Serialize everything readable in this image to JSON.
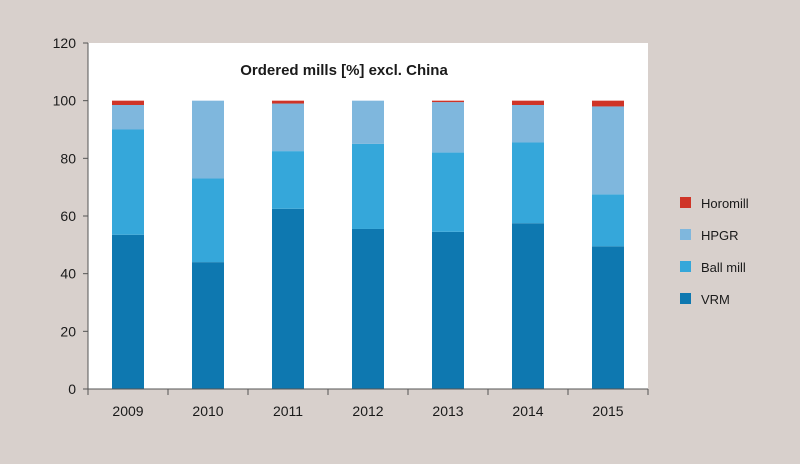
{
  "chart_data": {
    "type": "bar",
    "stacked": true,
    "title": "Ordered mills [%] excl. China",
    "xlabel": "",
    "ylabel": "",
    "ylim": [
      0,
      120
    ],
    "yticks": [
      0,
      20,
      40,
      60,
      80,
      100,
      120
    ],
    "categories": [
      "2009",
      "2010",
      "2011",
      "2012",
      "2013",
      "2014",
      "2015"
    ],
    "series": [
      {
        "name": "VRM",
        "color": "#0e78b0",
        "values": [
          53.5,
          44,
          62.5,
          55.5,
          54.5,
          57.5,
          49.5
        ]
      },
      {
        "name": "Ball mill",
        "color": "#35a7da",
        "values": [
          36.5,
          29,
          20,
          29.5,
          27.5,
          28,
          18
        ]
      },
      {
        "name": "HPGR",
        "color": "#7fb7dd",
        "values": [
          8.5,
          27,
          16.5,
          15,
          17.5,
          13,
          30.5
        ]
      },
      {
        "name": "Horomill",
        "color": "#cf3427",
        "values": [
          1.5,
          0,
          1,
          0,
          0.5,
          1.5,
          2
        ]
      }
    ],
    "legend": {
      "position": "right",
      "order": [
        "Horomill",
        "HPGR",
        "Ball mill",
        "VRM"
      ]
    },
    "grid": false
  }
}
